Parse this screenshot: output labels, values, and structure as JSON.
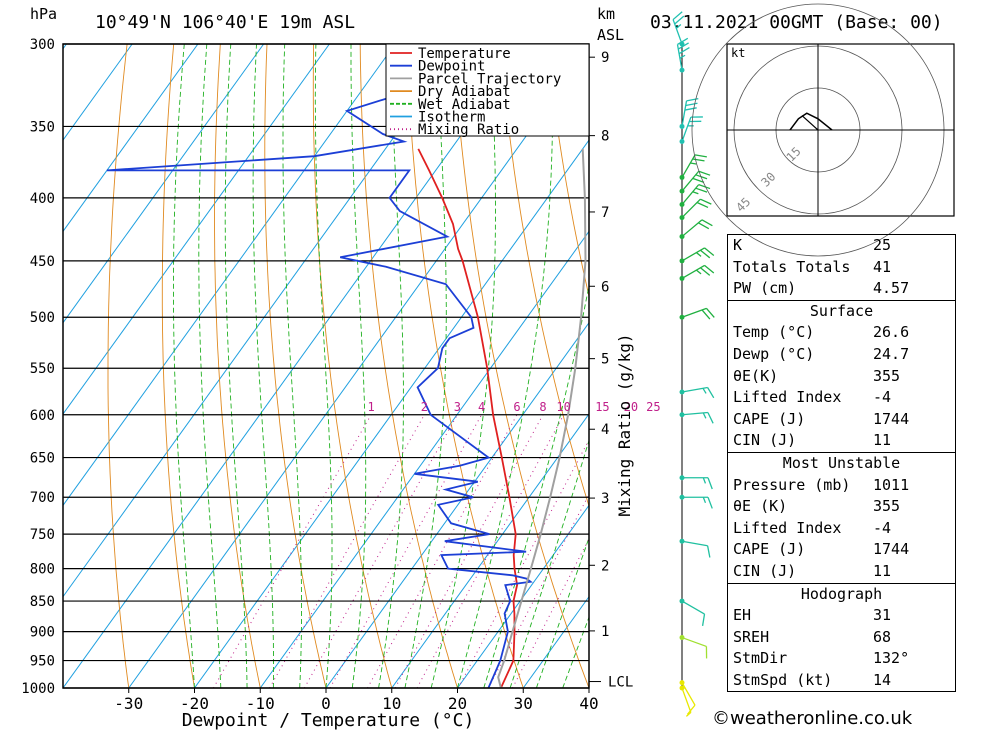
{
  "header": {
    "unit_left": "hPa",
    "location": "10°49'N 106°40'E 19m ASL",
    "unit_km": "km",
    "unit_asl": "ASL",
    "datetime": "03.11.2021 00GMT (Base: 00)"
  },
  "chart_data": {
    "type": "line",
    "subtype": "skew-T log-P diagram",
    "xlabel": "Dewpoint / Temperature (°C)",
    "ylabel": "hPa",
    "secondary_ylabel": "Mixing Ratio (g/kg)",
    "x_ticks": [
      -30,
      -20,
      -10,
      0,
      10,
      20,
      30,
      40
    ],
    "xlim": [
      -40,
      40
    ],
    "ylim": [
      1000,
      300
    ],
    "pressure_ticks": [
      300,
      350,
      400,
      450,
      500,
      550,
      600,
      650,
      700,
      750,
      800,
      850,
      900,
      950,
      1000
    ],
    "km_ticks": [
      1,
      2,
      3,
      4,
      5,
      6,
      7,
      8,
      9
    ],
    "mixing_ratio_labels": [
      1,
      2,
      3,
      4,
      6,
      8,
      10,
      15,
      20,
      25
    ],
    "lcl_label": "LCL",
    "skew_deg_per_unit": 45,
    "legend": [
      {
        "name": "Temperature",
        "color": "#e02020",
        "style": "solid"
      },
      {
        "name": "Dewpoint",
        "color": "#1c3fd6",
        "style": "solid"
      },
      {
        "name": "Parcel Trajectory",
        "color": "#a0a0a0",
        "style": "solid"
      },
      {
        "name": "Dry Adiabat",
        "color": "#e08a20",
        "style": "solid"
      },
      {
        "name": "Wet Adiabat",
        "color": "#20b020",
        "style": "dashed"
      },
      {
        "name": "Isotherm",
        "color": "#20a0e0",
        "style": "solid"
      },
      {
        "name": "Mixing Ratio",
        "color": "#c0208a",
        "style": "dotted"
      }
    ],
    "series": [
      {
        "name": "Temperature",
        "color": "#e02020",
        "p": [
          1000,
          950,
          900,
          870,
          850,
          825,
          800,
          780,
          750,
          700,
          650,
          600,
          550,
          500,
          450,
          440,
          420,
          400,
          380,
          365
        ],
        "t": [
          26.6,
          25.5,
          22.5,
          20.5,
          19.0,
          17.8,
          15.6,
          14.0,
          12.0,
          7.0,
          1.5,
          -4.5,
          -10.5,
          -17.5,
          -26.0,
          -28.0,
          -31.5,
          -36.0,
          -41.0,
          -45.0
        ]
      },
      {
        "name": "Dewpoint",
        "color": "#1c3fd6",
        "p": [
          1000,
          950,
          900,
          870,
          850,
          825,
          820,
          815,
          810,
          800,
          780,
          775,
          760,
          750,
          735,
          710,
          700,
          690,
          680,
          670,
          660,
          650,
          600,
          570,
          550,
          530,
          520,
          510,
          500,
          470,
          455,
          447,
          430,
          410,
          400,
          380,
          380,
          370,
          360,
          355,
          340,
          330,
          325
        ],
        "t": [
          24.7,
          23.5,
          21.5,
          19.0,
          18.5,
          16.0,
          19.5,
          18.5,
          16.0,
          5.5,
          3.0,
          15.5,
          2.0,
          8.0,
          1.0,
          -3.0,
          1.5,
          -3.5,
          0.5,
          -10.0,
          -4.0,
          -0.5,
          -14.0,
          -19.0,
          -18.0,
          -19.5,
          -19.5,
          -17.0,
          -18.5,
          -26.0,
          -37.0,
          -45.0,
          -31.0,
          -41.0,
          -44.0,
          -44.0,
          -90.0,
          -60.0,
          -48.0,
          -52.0,
          -60.0,
          -54.0,
          -55.0
        ]
      },
      {
        "name": "Parcel Trajectory",
        "color": "#a0a0a0",
        "p": [
          1000,
          980,
          950,
          900,
          850,
          800,
          750,
          700,
          650,
          600,
          550,
          500,
          450,
          400,
          365
        ],
        "t": [
          26.6,
          25.0,
          24.1,
          22.2,
          20.2,
          18.1,
          15.8,
          13.2,
          10.3,
          6.9,
          2.9,
          -1.8,
          -7.3,
          -14.3,
          -20.0
        ]
      }
    ],
    "wind_barbs": [
      {
        "p": 300,
        "dir": 340,
        "kt": 25
      },
      {
        "p": 315,
        "dir": 350,
        "kt": 35
      },
      {
        "p": 350,
        "dir": 10,
        "kt": 30
      },
      {
        "p": 360,
        "dir": 20,
        "kt": 25
      },
      {
        "p": 385,
        "dir": 30,
        "kt": 25
      },
      {
        "p": 395,
        "dir": 40,
        "kt": 30
      },
      {
        "p": 405,
        "dir": 40,
        "kt": 25
      },
      {
        "p": 415,
        "dir": 45,
        "kt": 20
      },
      {
        "p": 430,
        "dir": 50,
        "kt": 20
      },
      {
        "p": 450,
        "dir": 60,
        "kt": 25
      },
      {
        "p": 465,
        "dir": 60,
        "kt": 25
      },
      {
        "p": 500,
        "dir": 70,
        "kt": 20
      },
      {
        "p": 575,
        "dir": 80,
        "kt": 15
      },
      {
        "p": 600,
        "dir": 85,
        "kt": 15
      },
      {
        "p": 675,
        "dir": 90,
        "kt": 15
      },
      {
        "p": 700,
        "dir": 90,
        "kt": 15
      },
      {
        "p": 760,
        "dir": 100,
        "kt": 10
      },
      {
        "p": 850,
        "dir": 120,
        "kt": 10
      },
      {
        "p": 910,
        "dir": 110,
        "kt": 10
      },
      {
        "p": 990,
        "dir": 150,
        "kt": 10
      },
      {
        "p": 1000,
        "dir": 160,
        "kt": 5
      }
    ],
    "hodograph": {
      "unit": "kt",
      "ring_labels": [
        "15",
        "30",
        "45"
      ],
      "points": [
        [
          5,
          0
        ],
        [
          0,
          -4
        ],
        [
          -4,
          -6
        ],
        [
          -7,
          -4
        ],
        [
          -10,
          0
        ]
      ],
      "storm_motion": {
        "dir": 132,
        "kt": 14
      }
    }
  },
  "table": {
    "indices": [
      {
        "label": "K",
        "value": "25"
      },
      {
        "label": "Totals Totals",
        "value": "41"
      },
      {
        "label": "PW (cm)",
        "value": "4.57"
      }
    ],
    "surface_title": "Surface",
    "surface": [
      {
        "label": "Temp (°C)",
        "value": "26.6"
      },
      {
        "label": "Dewp (°C)",
        "value": "24.7"
      },
      {
        "label": "θE(K)",
        "value": "355"
      },
      {
        "label": "Lifted Index",
        "value": "-4"
      },
      {
        "label": "CAPE (J)",
        "value": "1744"
      },
      {
        "label": "CIN (J)",
        "value": "11"
      }
    ],
    "mu_title": "Most Unstable",
    "mu": [
      {
        "label": "Pressure (mb)",
        "value": "1011"
      },
      {
        "label": "θE (K)",
        "value": "355"
      },
      {
        "label": "Lifted Index",
        "value": "-4"
      },
      {
        "label": "CAPE (J)",
        "value": "1744"
      },
      {
        "label": "CIN (J)",
        "value": "11"
      }
    ],
    "hodo_title": "Hodograph",
    "hodo": [
      {
        "label": "EH",
        "value": "31"
      },
      {
        "label": "SREH",
        "value": "68"
      },
      {
        "label": "StmDir",
        "value": "132°"
      },
      {
        "label": "StmSpd (kt)",
        "value": "14"
      }
    ]
  },
  "credit": "©weatheronline.co.uk"
}
